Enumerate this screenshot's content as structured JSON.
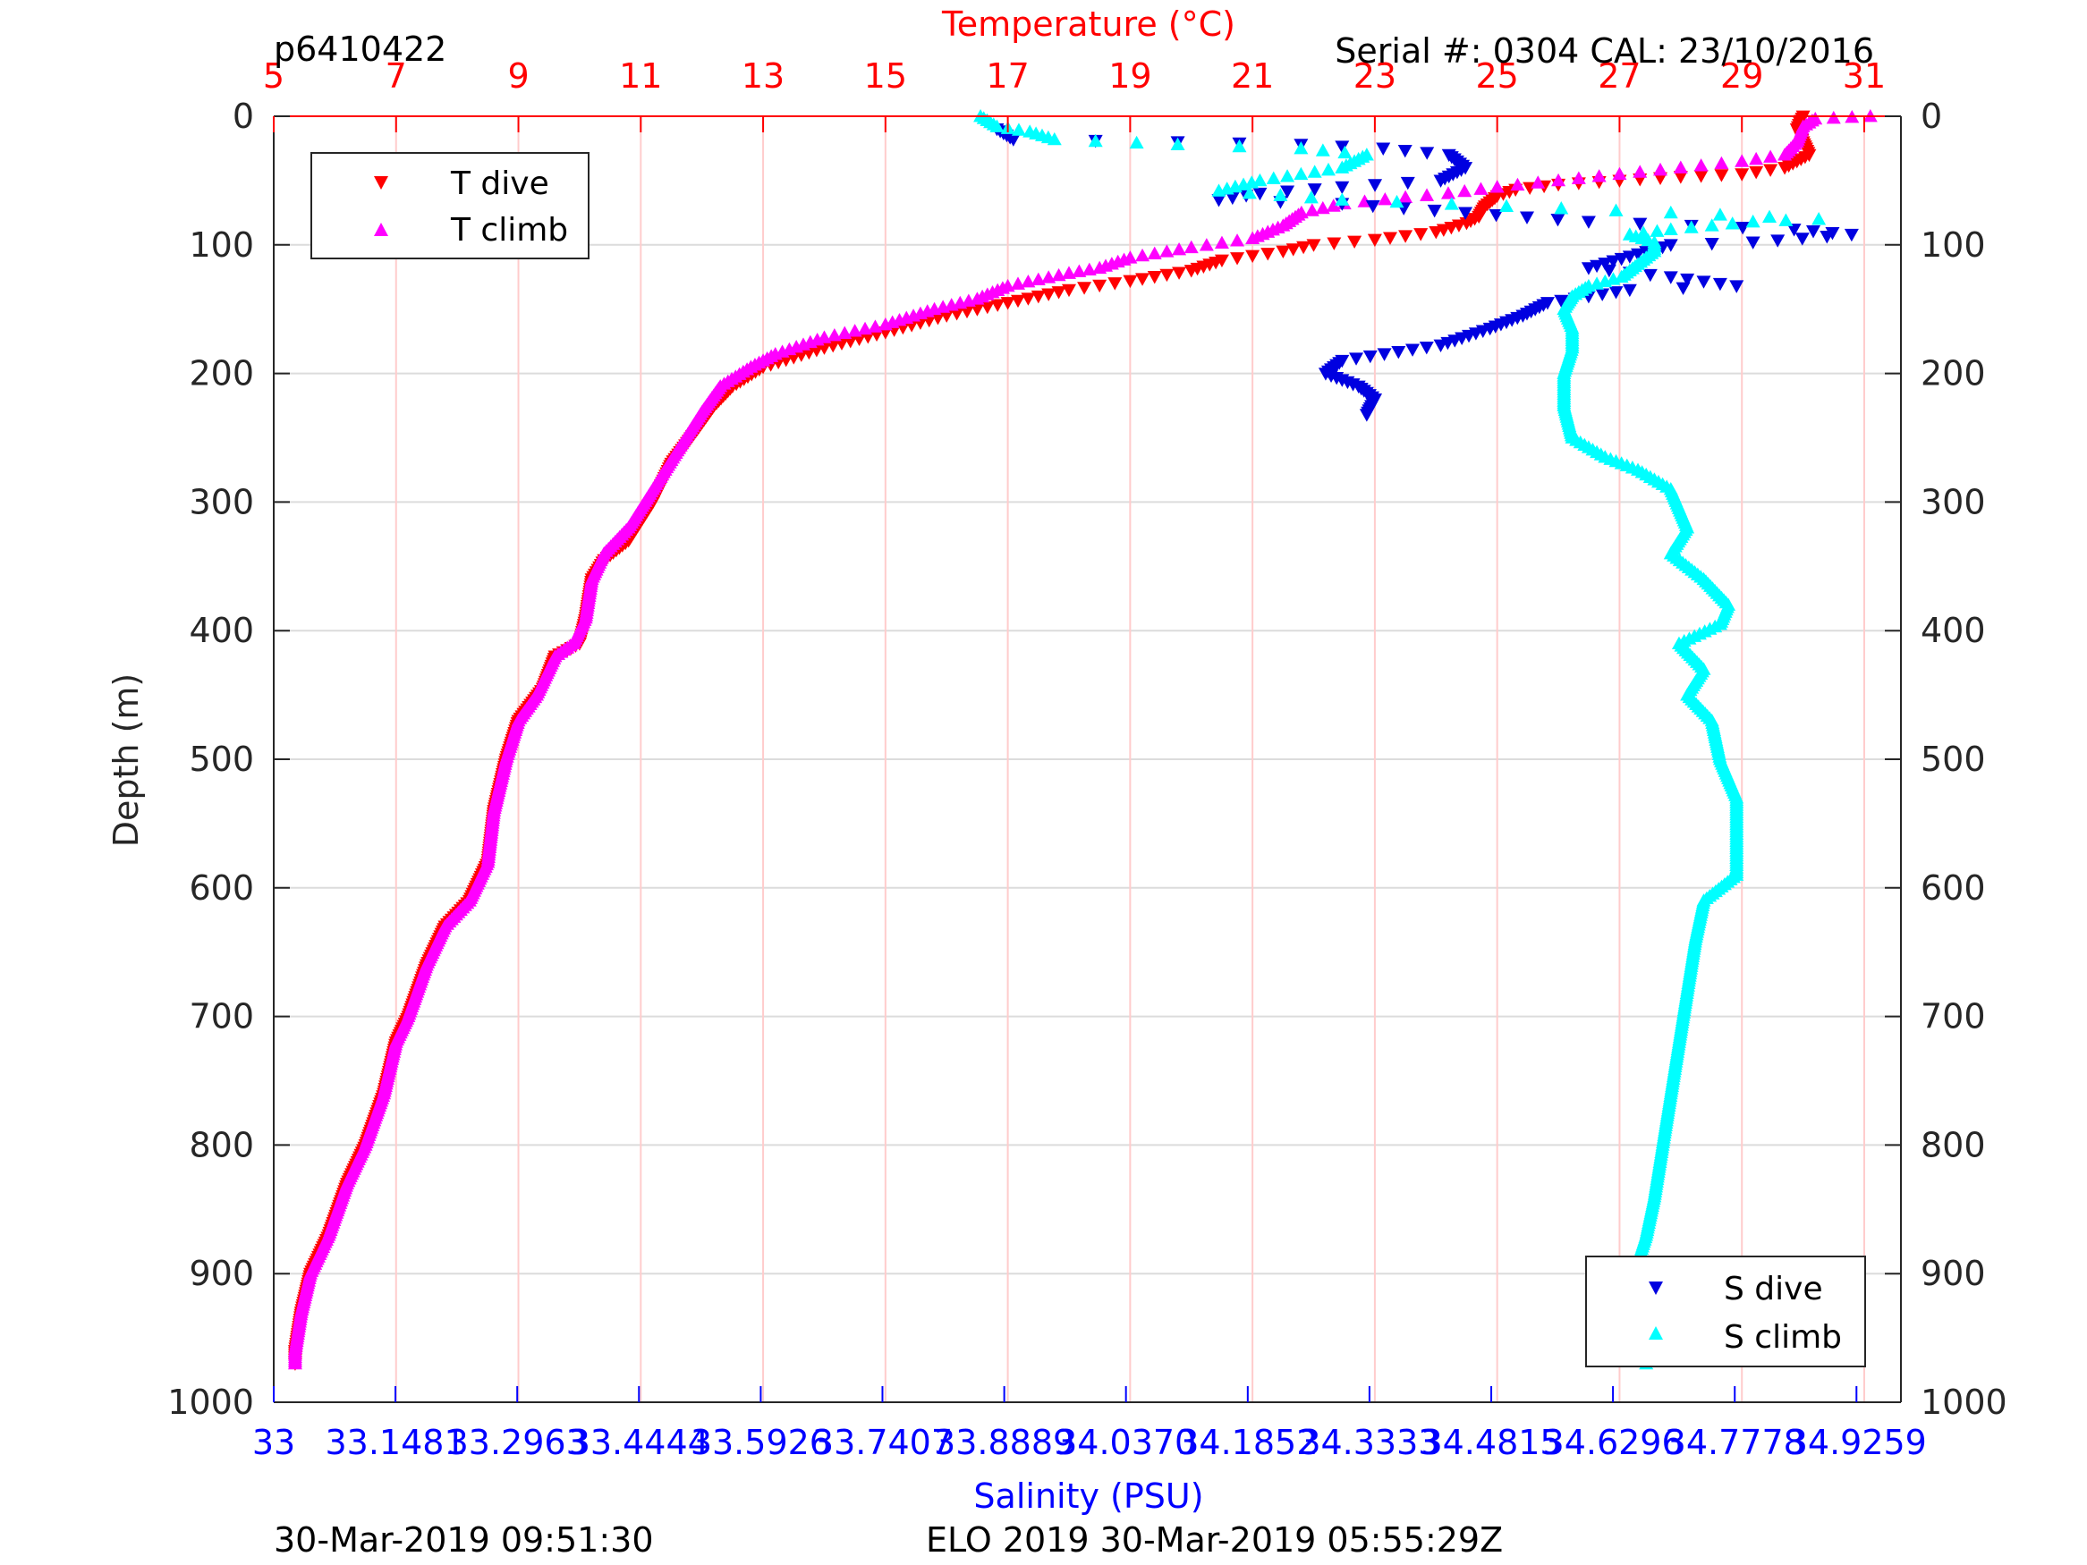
{
  "header": {
    "profile_id": "p6410422",
    "serial_cal": "Serial #: 0304  CAL: 23/10/2016"
  },
  "footer": {
    "left_timestamp": "30-Mar-2019 09:51:30",
    "right_caption": "ELO 2019 30-Mar-2019 05:55:29Z"
  },
  "colors": {
    "t_dive": "#ff0000",
    "t_climb": "#ff00ff",
    "s_dive": "#0000e0",
    "s_climb": "#00ffff",
    "temp_axis": "#ff0000",
    "sal_axis": "#0000ff",
    "grid_depth": "#dcdcdc",
    "grid_temp": "#ffcccc"
  },
  "chart_data": {
    "type": "scatter",
    "ylabel": "Depth (m)",
    "xlabel_top": "Temperature (°C)",
    "xlabel_bottom": "Salinity (PSU)",
    "ylim": [
      0,
      1000
    ],
    "y_reversed": true,
    "temp_lim": [
      5,
      31.6
    ],
    "sal_lim": [
      33,
      34.98
    ],
    "depth_ticks": [
      0,
      100,
      200,
      300,
      400,
      500,
      600,
      700,
      800,
      900,
      1000
    ],
    "temp_ticks": [
      5,
      7,
      9,
      11,
      13,
      15,
      17,
      19,
      21,
      23,
      25,
      27,
      29,
      31
    ],
    "sal_ticks": [
      33,
      33.1481,
      33.2963,
      33.4444,
      33.5926,
      33.7407,
      33.8889,
      34.037,
      34.1852,
      34.3333,
      34.4815,
      34.6296,
      34.7778,
      34.9259
    ],
    "sal_tick_labels": [
      "33",
      "33.1481",
      "33.2963",
      "33.4444",
      "33.5926",
      "33.7407",
      "33.8889",
      "34.0370",
      "34.1852",
      "34.3333",
      "34.4815",
      "34.6296",
      "34.7778",
      "34.9259"
    ],
    "grid": true,
    "legend_top": {
      "placement": "top-left",
      "entries": [
        "T dive",
        "T climb"
      ]
    },
    "legend_bottom": {
      "placement": "bottom-right",
      "entries": [
        "S dive",
        "S climb"
      ]
    },
    "series": [
      {
        "name": "T dive",
        "axis": "temperature",
        "marker": "triangle-down",
        "points": [
          [
            30.0,
            0
          ],
          [
            29.9,
            10
          ],
          [
            30.0,
            20
          ],
          [
            30.1,
            30
          ],
          [
            29.7,
            40
          ],
          [
            29.0,
            45
          ],
          [
            28.0,
            47
          ],
          [
            27.0,
            50
          ],
          [
            26.0,
            53
          ],
          [
            25.3,
            57
          ],
          [
            25.0,
            62
          ],
          [
            24.8,
            70
          ],
          [
            24.7,
            78
          ],
          [
            24.5,
            83
          ],
          [
            24.0,
            90
          ],
          [
            23.0,
            96
          ],
          [
            22.0,
            100
          ],
          [
            21.5,
            105
          ],
          [
            20.5,
            112
          ],
          [
            20.0,
            120
          ],
          [
            19.0,
            128
          ],
          [
            18.0,
            135
          ],
          [
            17.0,
            145
          ],
          [
            16.0,
            155
          ],
          [
            15.0,
            168
          ],
          [
            14.0,
            180
          ],
          [
            13.0,
            195
          ],
          [
            12.5,
            210
          ],
          [
            12.2,
            225
          ],
          [
            11.9,
            245
          ],
          [
            11.5,
            270
          ],
          [
            11.2,
            300
          ],
          [
            10.8,
            330
          ],
          [
            10.4,
            345
          ],
          [
            10.2,
            360
          ],
          [
            10.1,
            390
          ],
          [
            10.0,
            410
          ],
          [
            9.6,
            420
          ],
          [
            9.4,
            445
          ],
          [
            9.0,
            470
          ],
          [
            8.8,
            500
          ],
          [
            8.6,
            540
          ],
          [
            8.5,
            580
          ],
          [
            8.2,
            610
          ],
          [
            7.8,
            630
          ],
          [
            7.5,
            660
          ],
          [
            7.2,
            700
          ],
          [
            7.0,
            720
          ],
          [
            6.8,
            760
          ],
          [
            6.5,
            800
          ],
          [
            6.2,
            830
          ],
          [
            5.9,
            870
          ],
          [
            5.6,
            900
          ],
          [
            5.45,
            930
          ],
          [
            5.35,
            960
          ],
          [
            5.35,
            970
          ]
        ]
      },
      {
        "name": "T climb",
        "axis": "temperature",
        "marker": "triangle-up",
        "points": [
          [
            31.1,
            0
          ],
          [
            30.2,
            2
          ],
          [
            30.0,
            8
          ],
          [
            29.9,
            20
          ],
          [
            29.7,
            30
          ],
          [
            29.0,
            35
          ],
          [
            28.0,
            40
          ],
          [
            27.0,
            45
          ],
          [
            26.0,
            50
          ],
          [
            25.0,
            55
          ],
          [
            24.2,
            60
          ],
          [
            23.5,
            63
          ],
          [
            22.5,
            68
          ],
          [
            21.8,
            75
          ],
          [
            21.5,
            85
          ],
          [
            21.0,
            95
          ],
          [
            20.0,
            102
          ],
          [
            19.0,
            110
          ],
          [
            18.5,
            118
          ],
          [
            18.0,
            122
          ],
          [
            17.0,
            132
          ],
          [
            16.5,
            142
          ],
          [
            15.8,
            150
          ],
          [
            15.0,
            162
          ],
          [
            14.0,
            172
          ],
          [
            13.2,
            185
          ],
          [
            12.8,
            195
          ],
          [
            12.3,
            210
          ],
          [
            12.0,
            230
          ],
          [
            11.6,
            260
          ],
          [
            11.2,
            290
          ],
          [
            10.8,
            320
          ],
          [
            10.4,
            340
          ],
          [
            10.2,
            360
          ],
          [
            10.1,
            390
          ],
          [
            9.9,
            410
          ],
          [
            9.6,
            420
          ],
          [
            9.3,
            450
          ],
          [
            9.0,
            470
          ],
          [
            8.8,
            500
          ],
          [
            8.6,
            540
          ],
          [
            8.5,
            580
          ],
          [
            8.2,
            610
          ],
          [
            7.8,
            630
          ],
          [
            7.5,
            660
          ],
          [
            7.2,
            700
          ],
          [
            7.0,
            720
          ],
          [
            6.8,
            760
          ],
          [
            6.5,
            800
          ],
          [
            6.2,
            830
          ],
          [
            5.9,
            870
          ],
          [
            5.6,
            900
          ],
          [
            5.45,
            930
          ],
          [
            5.35,
            960
          ],
          [
            5.35,
            970
          ]
        ]
      },
      {
        "name": "S dive",
        "axis": "salinity",
        "marker": "triangle-down",
        "points": [
          [
            33.88,
            10
          ],
          [
            33.9,
            18
          ],
          [
            34.1,
            20
          ],
          [
            34.25,
            22
          ],
          [
            34.35,
            25
          ],
          [
            34.43,
            30
          ],
          [
            34.45,
            40
          ],
          [
            34.42,
            50
          ],
          [
            34.3,
            55
          ],
          [
            34.2,
            60
          ],
          [
            34.15,
            65
          ],
          [
            34.3,
            68
          ],
          [
            34.45,
            75
          ],
          [
            34.6,
            82
          ],
          [
            34.85,
            88
          ],
          [
            34.92,
            92
          ],
          [
            34.8,
            98
          ],
          [
            34.7,
            100
          ],
          [
            34.6,
            118
          ],
          [
            34.7,
            125
          ],
          [
            34.78,
            132
          ],
          [
            34.65,
            135
          ],
          [
            34.55,
            145
          ],
          [
            34.52,
            155
          ],
          [
            34.48,
            165
          ],
          [
            34.42,
            178
          ],
          [
            34.3,
            190
          ],
          [
            34.28,
            200
          ],
          [
            34.32,
            210
          ],
          [
            34.34,
            220
          ],
          [
            34.33,
            232
          ]
        ]
      },
      {
        "name": "S climb",
        "axis": "salinity",
        "marker": "triangle-up",
        "points": [
          [
            33.86,
            0
          ],
          [
            33.88,
            8
          ],
          [
            33.92,
            12
          ],
          [
            33.95,
            18
          ],
          [
            34.1,
            22
          ],
          [
            34.25,
            25
          ],
          [
            34.33,
            30
          ],
          [
            34.3,
            40
          ],
          [
            34.2,
            50
          ],
          [
            34.15,
            58
          ],
          [
            34.3,
            65
          ],
          [
            34.5,
            70
          ],
          [
            34.7,
            75
          ],
          [
            34.88,
            80
          ],
          [
            34.8,
            82
          ],
          [
            34.7,
            88
          ],
          [
            34.65,
            92
          ],
          [
            34.68,
            98
          ],
          [
            34.68,
            105
          ],
          [
            34.66,
            115
          ],
          [
            34.64,
            125
          ],
          [
            34.6,
            132
          ],
          [
            34.58,
            140
          ],
          [
            34.57,
            150
          ],
          [
            34.58,
            165
          ],
          [
            34.58,
            180
          ],
          [
            34.57,
            200
          ],
          [
            34.57,
            225
          ],
          [
            34.58,
            250
          ],
          [
            34.62,
            265
          ],
          [
            34.66,
            275
          ],
          [
            34.7,
            290
          ],
          [
            34.72,
            320
          ],
          [
            34.7,
            340
          ],
          [
            34.74,
            360
          ],
          [
            34.77,
            380
          ],
          [
            34.76,
            395
          ],
          [
            34.71,
            410
          ],
          [
            34.74,
            430
          ],
          [
            34.72,
            450
          ],
          [
            34.75,
            470
          ],
          [
            34.76,
            500
          ],
          [
            34.78,
            530
          ],
          [
            34.78,
            560
          ],
          [
            34.78,
            590
          ],
          [
            34.74,
            610
          ],
          [
            34.73,
            640
          ],
          [
            34.72,
            680
          ],
          [
            34.71,
            720
          ],
          [
            34.7,
            760
          ],
          [
            34.69,
            800
          ],
          [
            34.68,
            840
          ],
          [
            34.67,
            870
          ],
          [
            34.66,
            890
          ],
          [
            34.68,
            900
          ],
          [
            34.67,
            920
          ],
          [
            34.67,
            950
          ],
          [
            34.67,
            970
          ]
        ]
      }
    ]
  }
}
